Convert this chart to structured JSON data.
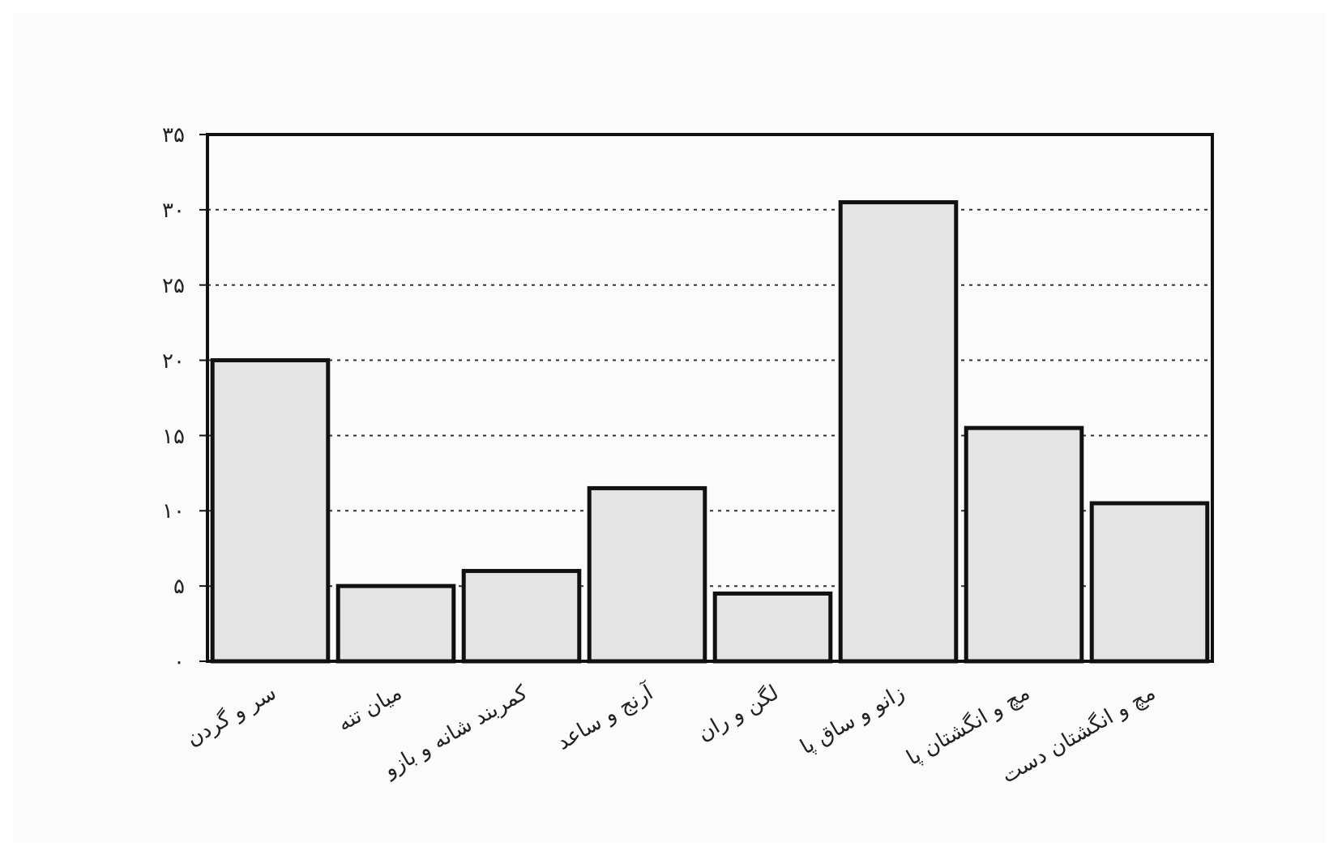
{
  "chart_data": {
    "type": "bar",
    "categories": [
      "سر و گردن",
      "میان تنه",
      "کمربند شانه و بازو",
      "آرنج و ساعد",
      "لگن و ران",
      "زانو و ساق پا",
      "مچ و انگشتان پا",
      "مچ و انگشتان دست"
    ],
    "values": [
      20,
      5,
      6,
      11.5,
      4.5,
      30.5,
      15.5,
      10.5
    ],
    "color": "#e4e4e4",
    "ylim": [
      0,
      35
    ],
    "yticks": [
      {
        "value": 0,
        "label": "۰"
      },
      {
        "value": 5,
        "label": "۵"
      },
      {
        "value": 10,
        "label": "۱۰"
      },
      {
        "value": 15,
        "label": "۱۵"
      },
      {
        "value": 20,
        "label": "۲۰"
      },
      {
        "value": 25,
        "label": "۲۵"
      },
      {
        "value": 30,
        "label": "۳۰"
      },
      {
        "value": 35,
        "label": "۳۵"
      }
    ],
    "grid": "y"
  }
}
